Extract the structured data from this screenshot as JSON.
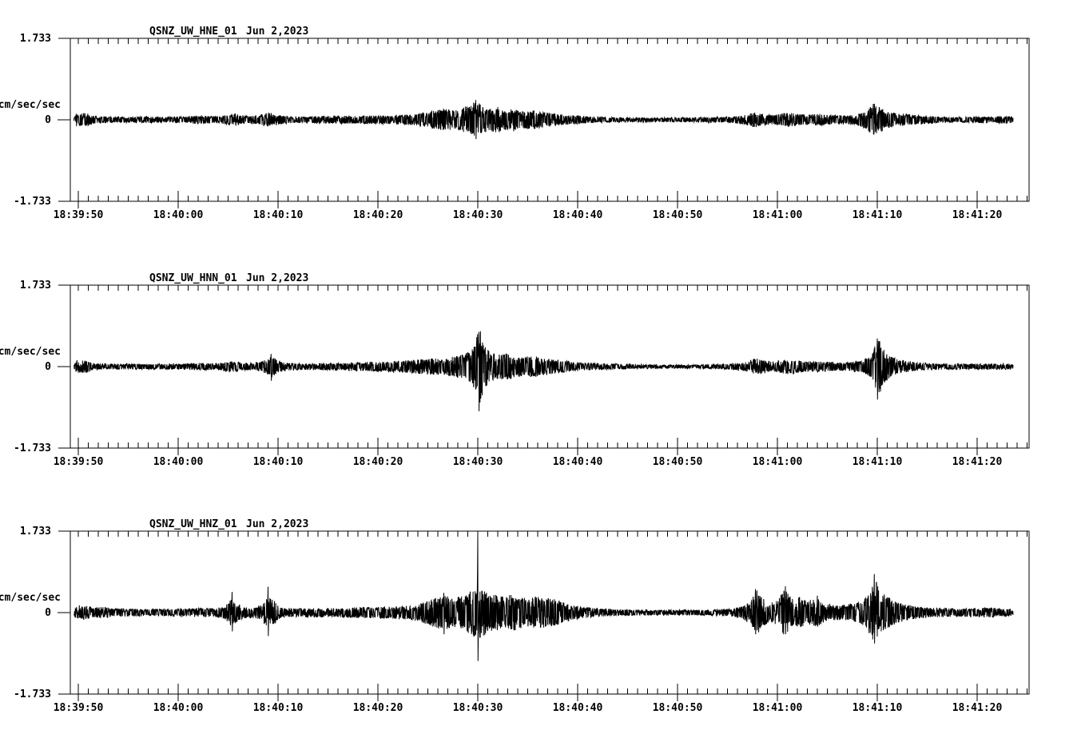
{
  "figure": {
    "background": "#ffffff",
    "ink": "#000000",
    "kind": "seismogram-webicorder"
  },
  "chart_data": [
    {
      "type": "line",
      "panel": "top",
      "station_label": "QSNZ_UW_HNE_01",
      "date_label": "Jun 2,2023",
      "ylabel": "cm/sec/sec",
      "y_tick_labels": [
        "1.733",
        "0",
        "-1.733"
      ],
      "y_tick_values": [
        1.733,
        0,
        -1.733
      ],
      "ylim": [
        -1.733,
        1.733
      ],
      "x_tick_labels": [
        "18:39:50",
        "18:40:00",
        "18:40:10",
        "18:40:20",
        "18:40:30",
        "18:40:40",
        "18:40:50",
        "18:41:00",
        "18:41:10",
        "18:41:20"
      ],
      "x_tick_seconds": [
        0,
        10,
        20,
        30,
        40,
        50,
        60,
        70,
        80,
        90
      ],
      "x_minor_tick_interval_seconds": 1,
      "xlim_seconds": [
        -0.8,
        95.2
      ],
      "grid": false,
      "legend": "none",
      "seed": 1101,
      "envelope_peak_amplitude": [
        [
          -0.45,
          0.03
        ],
        [
          -0.15,
          0.15
        ],
        [
          0.9,
          0.14
        ],
        [
          1.6,
          0.08
        ],
        [
          3,
          0.07
        ],
        [
          5,
          0.06
        ],
        [
          7,
          0.07
        ],
        [
          9,
          0.06
        ],
        [
          11,
          0.07
        ],
        [
          12.3,
          0.1
        ],
        [
          13,
          0.08
        ],
        [
          14.2,
          0.08
        ],
        [
          15,
          0.11
        ],
        [
          15.6,
          0.14
        ],
        [
          16.3,
          0.09
        ],
        [
          17.2,
          0.08
        ],
        [
          18.2,
          0.11
        ],
        [
          18.9,
          0.16
        ],
        [
          19.5,
          0.12
        ],
        [
          20.3,
          0.09
        ],
        [
          21.5,
          0.07
        ],
        [
          23,
          0.07
        ],
        [
          24.5,
          0.08
        ],
        [
          26,
          0.09
        ],
        [
          27.5,
          0.08
        ],
        [
          29,
          0.09
        ],
        [
          30.5,
          0.09
        ],
        [
          32,
          0.1
        ],
        [
          33.5,
          0.12
        ],
        [
          34.8,
          0.16
        ],
        [
          36,
          0.21
        ],
        [
          36.8,
          0.24
        ],
        [
          37.6,
          0.2
        ],
        [
          38.5,
          0.26
        ],
        [
          39.3,
          0.3
        ],
        [
          39.8,
          0.43
        ],
        [
          40.4,
          0.3
        ],
        [
          41.1,
          0.24
        ],
        [
          41.9,
          0.29
        ],
        [
          42.6,
          0.21
        ],
        [
          43.5,
          0.25
        ],
        [
          44.4,
          0.19
        ],
        [
          45.4,
          0.21
        ],
        [
          46.4,
          0.17
        ],
        [
          47.4,
          0.14
        ],
        [
          48.5,
          0.11
        ],
        [
          50,
          0.09
        ],
        [
          51.5,
          0.07
        ],
        [
          53,
          0.06
        ],
        [
          55,
          0.05
        ],
        [
          58,
          0.05
        ],
        [
          61,
          0.05
        ],
        [
          63.5,
          0.06
        ],
        [
          65,
          0.06
        ],
        [
          66.2,
          0.09
        ],
        [
          67.2,
          0.13
        ],
        [
          67.9,
          0.17
        ],
        [
          68.6,
          0.12
        ],
        [
          69.6,
          0.11
        ],
        [
          70.6,
          0.14
        ],
        [
          71.3,
          0.15
        ],
        [
          72.2,
          0.12
        ],
        [
          73.2,
          0.11
        ],
        [
          74.1,
          0.13
        ],
        [
          75,
          0.11
        ],
        [
          76,
          0.1
        ],
        [
          77,
          0.1
        ],
        [
          78,
          0.12
        ],
        [
          79,
          0.22
        ],
        [
          79.6,
          0.36
        ],
        [
          80.3,
          0.27
        ],
        [
          81,
          0.18
        ],
        [
          81.9,
          0.14
        ],
        [
          82.7,
          0.13
        ],
        [
          83.5,
          0.11
        ],
        [
          84.5,
          0.09
        ],
        [
          86,
          0.07
        ],
        [
          88,
          0.06
        ],
        [
          90,
          0.07
        ],
        [
          91.5,
          0.06
        ],
        [
          92.7,
          0.09
        ],
        [
          93.6,
          0.06
        ]
      ],
      "spikes": [
        [
          39.8,
          0.42,
          0.41
        ],
        [
          79.6,
          0.34,
          0.31
        ]
      ]
    },
    {
      "type": "line",
      "panel": "middle",
      "station_label": "QSNZ_UW_HNN_01",
      "date_label": "Jun 2,2023",
      "ylabel": "cm/sec/sec",
      "y_tick_labels": [
        "1.733",
        "0",
        "-1.733"
      ],
      "y_tick_values": [
        1.733,
        0,
        -1.733
      ],
      "ylim": [
        -1.733,
        1.733
      ],
      "x_tick_labels": [
        "18:39:50",
        "18:40:00",
        "18:40:10",
        "18:40:20",
        "18:40:30",
        "18:40:40",
        "18:40:50",
        "18:41:00",
        "18:41:10",
        "18:41:20"
      ],
      "x_tick_seconds": [
        0,
        10,
        20,
        30,
        40,
        50,
        60,
        70,
        80,
        90
      ],
      "x_minor_tick_interval_seconds": 1,
      "xlim_seconds": [
        -0.8,
        95.2
      ],
      "grid": false,
      "legend": "none",
      "seed": 2202,
      "envelope_peak_amplitude": [
        [
          -0.45,
          0.03
        ],
        [
          -0.15,
          0.14
        ],
        [
          0.9,
          0.13
        ],
        [
          1.6,
          0.07
        ],
        [
          3,
          0.06
        ],
        [
          5,
          0.06
        ],
        [
          7,
          0.06
        ],
        [
          9,
          0.06
        ],
        [
          11,
          0.07
        ],
        [
          12.3,
          0.08
        ],
        [
          13.5,
          0.07
        ],
        [
          14.5,
          0.09
        ],
        [
          15.2,
          0.12
        ],
        [
          15.8,
          0.1
        ],
        [
          16.5,
          0.08
        ],
        [
          17.5,
          0.08
        ],
        [
          18.3,
          0.11
        ],
        [
          19.0,
          0.18
        ],
        [
          19.4,
          0.24
        ],
        [
          19.9,
          0.13
        ],
        [
          20.6,
          0.09
        ],
        [
          22,
          0.07
        ],
        [
          23.5,
          0.07
        ],
        [
          25,
          0.08
        ],
        [
          26.5,
          0.08
        ],
        [
          28,
          0.1
        ],
        [
          29.5,
          0.1
        ],
        [
          31,
          0.11
        ],
        [
          32.3,
          0.13
        ],
        [
          33.5,
          0.14
        ],
        [
          34.6,
          0.16
        ],
        [
          35.6,
          0.18
        ],
        [
          36.5,
          0.17
        ],
        [
          37.4,
          0.21
        ],
        [
          38.3,
          0.24
        ],
        [
          39.2,
          0.32
        ],
        [
          39.8,
          0.52
        ],
        [
          40.1,
          0.9
        ],
        [
          40.6,
          0.5
        ],
        [
          41.2,
          0.3
        ],
        [
          42,
          0.26
        ],
        [
          42.9,
          0.29
        ],
        [
          43.8,
          0.23
        ],
        [
          44.7,
          0.21
        ],
        [
          45.6,
          0.23
        ],
        [
          46.5,
          0.19
        ],
        [
          47.5,
          0.16
        ],
        [
          48.5,
          0.13
        ],
        [
          49.7,
          0.1
        ],
        [
          51,
          0.08
        ],
        [
          52.5,
          0.07
        ],
        [
          54,
          0.06
        ],
        [
          56,
          0.05
        ],
        [
          58.5,
          0.04
        ],
        [
          61,
          0.04
        ],
        [
          63.5,
          0.05
        ],
        [
          65.2,
          0.06
        ],
        [
          66.3,
          0.08
        ],
        [
          67.3,
          0.14
        ],
        [
          67.9,
          0.19
        ],
        [
          68.7,
          0.13
        ],
        [
          69.7,
          0.11
        ],
        [
          70.6,
          0.15
        ],
        [
          71.3,
          0.17
        ],
        [
          72.2,
          0.13
        ],
        [
          73.2,
          0.11
        ],
        [
          74.2,
          0.12
        ],
        [
          75.2,
          0.1
        ],
        [
          76.2,
          0.09
        ],
        [
          77.2,
          0.1
        ],
        [
          78.2,
          0.12
        ],
        [
          79.2,
          0.2
        ],
        [
          79.8,
          0.45
        ],
        [
          80.1,
          0.66
        ],
        [
          80.6,
          0.38
        ],
        [
          81.3,
          0.22
        ],
        [
          82,
          0.16
        ],
        [
          83,
          0.12
        ],
        [
          84,
          0.09
        ],
        [
          85.5,
          0.07
        ],
        [
          87.5,
          0.06
        ],
        [
          89.5,
          0.06
        ],
        [
          91.5,
          0.06
        ],
        [
          93,
          0.07
        ],
        [
          93.6,
          0.05
        ]
      ],
      "spikes": [
        [
          40.1,
          0.74,
          0.95
        ],
        [
          19.3,
          0.27,
          0.3
        ],
        [
          80.0,
          0.6,
          0.7
        ]
      ]
    },
    {
      "type": "line",
      "panel": "bottom",
      "station_label": "QSNZ_UW_HNZ_01",
      "date_label": "Jun 2,2023",
      "ylabel": "cm/sec/sec",
      "y_tick_labels": [
        "1.733",
        "0",
        "-1.733"
      ],
      "y_tick_values": [
        1.733,
        0,
        -1.733
      ],
      "ylim": [
        -1.733,
        1.733
      ],
      "x_tick_labels": [
        "18:39:50",
        "18:40:00",
        "18:40:10",
        "18:40:20",
        "18:40:30",
        "18:40:40",
        "18:40:50",
        "18:41:00",
        "18:41:10",
        "18:41:20"
      ],
      "x_tick_seconds": [
        0,
        10,
        20,
        30,
        40,
        50,
        60,
        70,
        80,
        90
      ],
      "x_minor_tick_interval_seconds": 1,
      "xlim_seconds": [
        -0.8,
        95.2
      ],
      "grid": false,
      "legend": "none",
      "seed": 3303,
      "envelope_peak_amplitude": [
        [
          -0.45,
          0.04
        ],
        [
          -0.15,
          0.17
        ],
        [
          0.9,
          0.15
        ],
        [
          1.7,
          0.1
        ],
        [
          2.6,
          0.13
        ],
        [
          3.4,
          0.09
        ],
        [
          5,
          0.08
        ],
        [
          7,
          0.08
        ],
        [
          9,
          0.08
        ],
        [
          11,
          0.09
        ],
        [
          12.5,
          0.1
        ],
        [
          13.6,
          0.09
        ],
        [
          14.6,
          0.12
        ],
        [
          15.3,
          0.28
        ],
        [
          15.9,
          0.2
        ],
        [
          16.6,
          0.12
        ],
        [
          17.6,
          0.11
        ],
        [
          18.4,
          0.16
        ],
        [
          19.0,
          0.38
        ],
        [
          19.5,
          0.28
        ],
        [
          20.2,
          0.12
        ],
        [
          21.2,
          0.1
        ],
        [
          22.5,
          0.09
        ],
        [
          24,
          0.1
        ],
        [
          25.5,
          0.1
        ],
        [
          27,
          0.11
        ],
        [
          28.5,
          0.12
        ],
        [
          30,
          0.12
        ],
        [
          31.5,
          0.13
        ],
        [
          33,
          0.15
        ],
        [
          34.2,
          0.2
        ],
        [
          35.2,
          0.28
        ],
        [
          36.1,
          0.33
        ],
        [
          36.7,
          0.38
        ],
        [
          37.4,
          0.3
        ],
        [
          38.2,
          0.34
        ],
        [
          39.1,
          0.42
        ],
        [
          39.7,
          0.55
        ],
        [
          40.0,
          0.6
        ],
        [
          40.5,
          0.5
        ],
        [
          41.2,
          0.42
        ],
        [
          42,
          0.38
        ],
        [
          42.8,
          0.33
        ],
        [
          43.6,
          0.42
        ],
        [
          44.4,
          0.34
        ],
        [
          45.2,
          0.3
        ],
        [
          46,
          0.36
        ],
        [
          46.8,
          0.32
        ],
        [
          47.6,
          0.29
        ],
        [
          48.5,
          0.22
        ],
        [
          49.5,
          0.16
        ],
        [
          50.5,
          0.12
        ],
        [
          52,
          0.09
        ],
        [
          54,
          0.07
        ],
        [
          56,
          0.06
        ],
        [
          58,
          0.06
        ],
        [
          60,
          0.06
        ],
        [
          62,
          0.06
        ],
        [
          64,
          0.07
        ],
        [
          65.5,
          0.09
        ],
        [
          66.6,
          0.15
        ],
        [
          67.4,
          0.28
        ],
        [
          67.9,
          0.48
        ],
        [
          68.5,
          0.32
        ],
        [
          69.2,
          0.2
        ],
        [
          70,
          0.26
        ],
        [
          70.7,
          0.52
        ],
        [
          71.4,
          0.3
        ],
        [
          72.2,
          0.34
        ],
        [
          73,
          0.24
        ],
        [
          73.9,
          0.32
        ],
        [
          74.7,
          0.2
        ],
        [
          75.6,
          0.16
        ],
        [
          76.6,
          0.17
        ],
        [
          77.6,
          0.2
        ],
        [
          78.6,
          0.28
        ],
        [
          79.4,
          0.5
        ],
        [
          79.8,
          0.7
        ],
        [
          80.4,
          0.45
        ],
        [
          81.2,
          0.32
        ],
        [
          82,
          0.22
        ],
        [
          83,
          0.17
        ],
        [
          84,
          0.13
        ],
        [
          85.5,
          0.1
        ],
        [
          87,
          0.09
        ],
        [
          88.5,
          0.09
        ],
        [
          90,
          0.1
        ],
        [
          91.3,
          0.11
        ],
        [
          92.3,
          0.09
        ],
        [
          93.6,
          0.07
        ]
      ],
      "spikes": [
        [
          40.0,
          1.7,
          1.03
        ],
        [
          19.0,
          0.55,
          0.5
        ],
        [
          15.4,
          0.44,
          0.4
        ],
        [
          36.6,
          0.42,
          0.46
        ],
        [
          67.8,
          0.5,
          0.46
        ],
        [
          70.8,
          0.56,
          0.46
        ],
        [
          74.0,
          0.36,
          0.3
        ],
        [
          79.7,
          0.82,
          0.66
        ]
      ]
    }
  ]
}
